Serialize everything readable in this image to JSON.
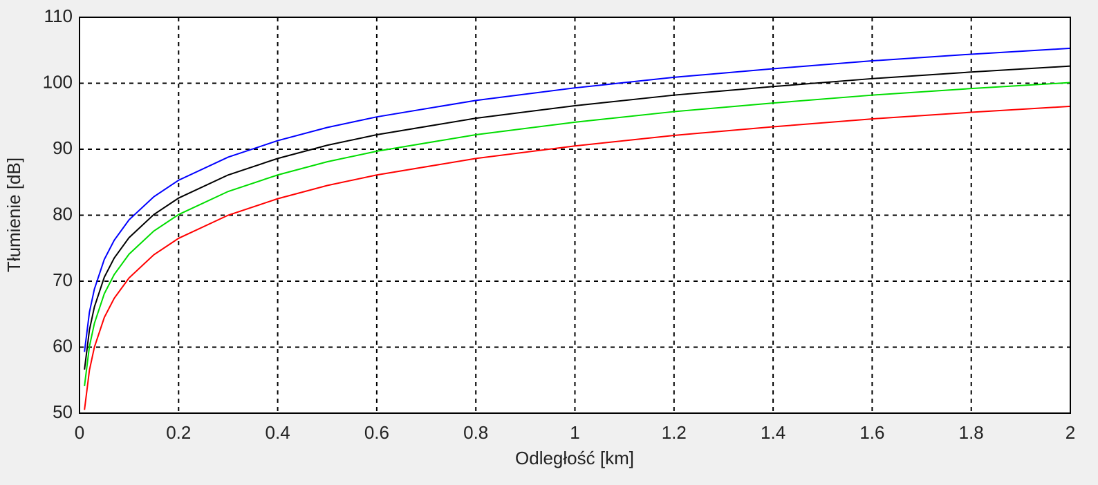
{
  "chart_data": {
    "type": "line",
    "x_label": "Odległość [km]",
    "y_label": "Tłumienie [dB]",
    "x": [
      0.01,
      0.02,
      0.03,
      0.05,
      0.07,
      0.1,
      0.15,
      0.2,
      0.3,
      0.4,
      0.5,
      0.6,
      0.8,
      1,
      1.2,
      1.4,
      1.6,
      1.8,
      2
    ],
    "series": [
      {
        "color": "#0000ff",
        "values": [
          59.3,
          65.3,
          68.8,
          73.3,
          76.2,
          79.3,
          82.8,
          85.3,
          88.8,
          91.3,
          93.3,
          94.9,
          97.4,
          99.3,
          100.9,
          102.2,
          103.4,
          104.4,
          105.3
        ]
      },
      {
        "color": "#000000",
        "values": [
          56.6,
          62.6,
          66.1,
          70.6,
          73.5,
          76.6,
          80.1,
          82.6,
          86.1,
          88.6,
          90.6,
          92.2,
          94.7,
          96.6,
          98.2,
          99.5,
          100.7,
          101.7,
          102.6
        ]
      },
      {
        "color": "#00dd00",
        "values": [
          54.1,
          60.1,
          63.6,
          68.1,
          71.0,
          74.1,
          77.6,
          80.1,
          83.6,
          86.1,
          88.1,
          89.7,
          92.2,
          94.1,
          95.7,
          97.0,
          98.2,
          99.2,
          100.1
        ]
      },
      {
        "color": "#ff0000",
        "values": [
          50.5,
          56.5,
          60.0,
          64.5,
          67.4,
          70.5,
          74.0,
          76.5,
          80.0,
          82.5,
          84.5,
          86.1,
          88.6,
          90.5,
          92.1,
          93.4,
          94.6,
          95.6,
          96.5
        ]
      }
    ],
    "xlim": [
      0,
      2
    ],
    "xticks": [
      0,
      0.2,
      0.4,
      0.6,
      0.8,
      1,
      1.2,
      1.4,
      1.6,
      1.8,
      2
    ],
    "ylim": [
      50,
      110
    ],
    "yticks": [
      50,
      60,
      70,
      80,
      90,
      100,
      110
    ],
    "grid": true
  }
}
